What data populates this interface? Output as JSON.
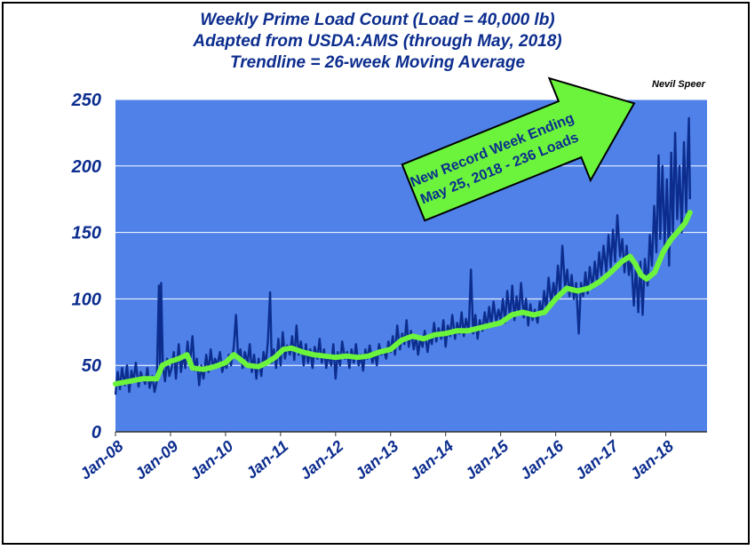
{
  "chart_data": {
    "type": "line",
    "title": [
      "Weekly Prime Load Count (Load = 40,000 lb)",
      "Adapted from USDA:AMS (through May, 2018)",
      "Trendline = 26-week Moving Average"
    ],
    "author": "Nevil Speer",
    "annotation": [
      "New Record Week Ending",
      "May 25, 2018 - 236 Loads"
    ],
    "xlabel": "",
    "ylabel": "",
    "x_tick_labels": [
      "Jan-08",
      "Jan-09",
      "Jan-10",
      "Jan-11",
      "Jan-12",
      "Jan-13",
      "Jan-14",
      "Jan-15",
      "Jan-16",
      "Jan-17",
      "Jan-18"
    ],
    "y_tick_labels": [
      "0",
      "50",
      "100",
      "150",
      "200",
      "250"
    ],
    "xlim": [
      2008.0,
      2018.75
    ],
    "ylim": [
      0,
      250
    ],
    "grid": true,
    "colors": {
      "background": "#4f81e8",
      "weekly": "#0c2d8e",
      "trend": "#6cf43c",
      "text": "#0c2d8e",
      "arrow_fill": "#6cf43c"
    },
    "series": [],
    "weekly_points": [
      [
        2008.0,
        28
      ],
      [
        2008.04,
        45
      ],
      [
        2008.08,
        32
      ],
      [
        2008.12,
        48
      ],
      [
        2008.17,
        35
      ],
      [
        2008.21,
        50
      ],
      [
        2008.25,
        30
      ],
      [
        2008.29,
        46
      ],
      [
        2008.33,
        38
      ],
      [
        2008.37,
        52
      ],
      [
        2008.42,
        34
      ],
      [
        2008.46,
        45
      ],
      [
        2008.5,
        40
      ],
      [
        2008.54,
        36
      ],
      [
        2008.58,
        48
      ],
      [
        2008.62,
        33
      ],
      [
        2008.67,
        42
      ],
      [
        2008.71,
        30
      ],
      [
        2008.75,
        38
      ],
      [
        2008.79,
        110
      ],
      [
        2008.81,
        45
      ],
      [
        2008.83,
        112
      ],
      [
        2008.86,
        50
      ],
      [
        2008.9,
        38
      ],
      [
        2008.94,
        55
      ],
      [
        2008.98,
        42
      ],
      [
        2009.02,
        48
      ],
      [
        2009.06,
        60
      ],
      [
        2009.1,
        40
      ],
      [
        2009.15,
        66
      ],
      [
        2009.19,
        45
      ],
      [
        2009.23,
        58
      ],
      [
        2009.27,
        48
      ],
      [
        2009.31,
        68
      ],
      [
        2009.35,
        50
      ],
      [
        2009.4,
        72
      ],
      [
        2009.44,
        46
      ],
      [
        2009.48,
        55
      ],
      [
        2009.52,
        35
      ],
      [
        2009.56,
        50
      ],
      [
        2009.6,
        40
      ],
      [
        2009.65,
        58
      ],
      [
        2009.69,
        45
      ],
      [
        2009.73,
        62
      ],
      [
        2009.77,
        48
      ],
      [
        2009.81,
        55
      ],
      [
        2009.85,
        50
      ],
      [
        2009.9,
        60
      ],
      [
        2009.94,
        45
      ],
      [
        2009.98,
        52
      ],
      [
        2010.02,
        48
      ],
      [
        2010.06,
        58
      ],
      [
        2010.1,
        50
      ],
      [
        2010.15,
        64
      ],
      [
        2010.19,
        88
      ],
      [
        2010.23,
        55
      ],
      [
        2010.27,
        62
      ],
      [
        2010.31,
        48
      ],
      [
        2010.35,
        60
      ],
      [
        2010.4,
        52
      ],
      [
        2010.44,
        66
      ],
      [
        2010.48,
        45
      ],
      [
        2010.52,
        58
      ],
      [
        2010.56,
        40
      ],
      [
        2010.6,
        55
      ],
      [
        2010.65,
        42
      ],
      [
        2010.69,
        60
      ],
      [
        2010.73,
        50
      ],
      [
        2010.77,
        68
      ],
      [
        2010.81,
        105
      ],
      [
        2010.84,
        52
      ],
      [
        2010.88,
        62
      ],
      [
        2010.92,
        48
      ],
      [
        2010.96,
        70
      ],
      [
        2011.0,
        50
      ],
      [
        2011.04,
        75
      ],
      [
        2011.08,
        55
      ],
      [
        2011.12,
        65
      ],
      [
        2011.17,
        58
      ],
      [
        2011.21,
        72
      ],
      [
        2011.25,
        54
      ],
      [
        2011.29,
        80
      ],
      [
        2011.33,
        58
      ],
      [
        2011.37,
        68
      ],
      [
        2011.42,
        50
      ],
      [
        2011.46,
        66
      ],
      [
        2011.5,
        52
      ],
      [
        2011.54,
        62
      ],
      [
        2011.58,
        48
      ],
      [
        2011.62,
        64
      ],
      [
        2011.67,
        55
      ],
      [
        2011.71,
        70
      ],
      [
        2011.75,
        52
      ],
      [
        2011.79,
        62
      ],
      [
        2011.83,
        48
      ],
      [
        2011.87,
        58
      ],
      [
        2011.92,
        50
      ],
      [
        2011.96,
        66
      ],
      [
        2012.0,
        40
      ],
      [
        2012.04,
        60
      ],
      [
        2012.08,
        50
      ],
      [
        2012.12,
        68
      ],
      [
        2012.17,
        55
      ],
      [
        2012.21,
        60
      ],
      [
        2012.25,
        48
      ],
      [
        2012.29,
        62
      ],
      [
        2012.33,
        52
      ],
      [
        2012.37,
        66
      ],
      [
        2012.42,
        50
      ],
      [
        2012.46,
        58
      ],
      [
        2012.5,
        46
      ],
      [
        2012.54,
        62
      ],
      [
        2012.58,
        55
      ],
      [
        2012.62,
        65
      ],
      [
        2012.67,
        52
      ],
      [
        2012.71,
        60
      ],
      [
        2012.75,
        50
      ],
      [
        2012.79,
        66
      ],
      [
        2012.83,
        58
      ],
      [
        2012.87,
        62
      ],
      [
        2012.92,
        55
      ],
      [
        2012.96,
        68
      ],
      [
        2013.0,
        60
      ],
      [
        2013.04,
        72
      ],
      [
        2013.08,
        58
      ],
      [
        2013.12,
        80
      ],
      [
        2013.17,
        62
      ],
      [
        2013.21,
        74
      ],
      [
        2013.25,
        66
      ],
      [
        2013.29,
        84
      ],
      [
        2013.33,
        64
      ],
      [
        2013.37,
        76
      ],
      [
        2013.42,
        62
      ],
      [
        2013.46,
        72
      ],
      [
        2013.5,
        58
      ],
      [
        2013.54,
        70
      ],
      [
        2013.58,
        64
      ],
      [
        2013.62,
        76
      ],
      [
        2013.67,
        60
      ],
      [
        2013.71,
        72
      ],
      [
        2013.75,
        66
      ],
      [
        2013.79,
        82
      ],
      [
        2013.83,
        68
      ],
      [
        2013.87,
        78
      ],
      [
        2013.92,
        70
      ],
      [
        2013.96,
        84
      ],
      [
        2014.0,
        64
      ],
      [
        2014.04,
        80
      ],
      [
        2014.08,
        72
      ],
      [
        2014.12,
        88
      ],
      [
        2014.17,
        70
      ],
      [
        2014.21,
        82
      ],
      [
        2014.25,
        74
      ],
      [
        2014.29,
        90
      ],
      [
        2014.33,
        72
      ],
      [
        2014.37,
        85
      ],
      [
        2014.42,
        76
      ],
      [
        2014.46,
        122
      ],
      [
        2014.5,
        74
      ],
      [
        2014.54,
        88
      ],
      [
        2014.58,
        70
      ],
      [
        2014.62,
        84
      ],
      [
        2014.67,
        76
      ],
      [
        2014.71,
        90
      ],
      [
        2014.75,
        78
      ],
      [
        2014.79,
        94
      ],
      [
        2014.83,
        80
      ],
      [
        2014.87,
        98
      ],
      [
        2014.92,
        82
      ],
      [
        2014.96,
        92
      ],
      [
        2015.0,
        84
      ],
      [
        2015.04,
        100
      ],
      [
        2015.08,
        82
      ],
      [
        2015.12,
        106
      ],
      [
        2015.17,
        86
      ],
      [
        2015.21,
        110
      ],
      [
        2015.25,
        84
      ],
      [
        2015.29,
        102
      ],
      [
        2015.33,
        88
      ],
      [
        2015.37,
        112
      ],
      [
        2015.42,
        86
      ],
      [
        2015.46,
        100
      ],
      [
        2015.5,
        80
      ],
      [
        2015.54,
        96
      ],
      [
        2015.58,
        84
      ],
      [
        2015.62,
        92
      ],
      [
        2015.67,
        82
      ],
      [
        2015.71,
        98
      ],
      [
        2015.75,
        88
      ],
      [
        2015.79,
        106
      ],
      [
        2015.83,
        92
      ],
      [
        2015.87,
        116
      ],
      [
        2015.92,
        96
      ],
      [
        2015.96,
        112
      ],
      [
        2016.0,
        100
      ],
      [
        2016.04,
        125
      ],
      [
        2016.08,
        104
      ],
      [
        2016.12,
        140
      ],
      [
        2016.17,
        108
      ],
      [
        2016.21,
        122
      ],
      [
        2016.25,
        102
      ],
      [
        2016.29,
        118
      ],
      [
        2016.33,
        100
      ],
      [
        2016.37,
        112
      ],
      [
        2016.42,
        74
      ],
      [
        2016.46,
        112
      ],
      [
        2016.5,
        102
      ],
      [
        2016.54,
        120
      ],
      [
        2016.58,
        104
      ],
      [
        2016.62,
        124
      ],
      [
        2016.67,
        108
      ],
      [
        2016.71,
        128
      ],
      [
        2016.75,
        112
      ],
      [
        2016.79,
        135
      ],
      [
        2016.83,
        118
      ],
      [
        2016.87,
        140
      ],
      [
        2016.92,
        120
      ],
      [
        2016.96,
        148
      ],
      [
        2017.0,
        124
      ],
      [
        2017.04,
        152
      ],
      [
        2017.08,
        128
      ],
      [
        2017.12,
        163
      ],
      [
        2017.17,
        132
      ],
      [
        2017.21,
        145
      ],
      [
        2017.25,
        120
      ],
      [
        2017.29,
        140
      ],
      [
        2017.33,
        118
      ],
      [
        2017.37,
        132
      ],
      [
        2017.42,
        95
      ],
      [
        2017.46,
        125
      ],
      [
        2017.5,
        90
      ],
      [
        2017.54,
        128
      ],
      [
        2017.58,
        88
      ],
      [
        2017.62,
        130
      ],
      [
        2017.67,
        110
      ],
      [
        2017.71,
        148
      ],
      [
        2017.75,
        125
      ],
      [
        2017.79,
        170
      ],
      [
        2017.83,
        135
      ],
      [
        2017.87,
        208
      ],
      [
        2017.9,
        145
      ],
      [
        2017.94,
        200
      ],
      [
        2017.98,
        140
      ],
      [
        2018.02,
        190
      ],
      [
        2018.06,
        125
      ],
      [
        2018.1,
        210
      ],
      [
        2018.13,
        150
      ],
      [
        2018.17,
        225
      ],
      [
        2018.21,
        160
      ],
      [
        2018.25,
        200
      ],
      [
        2018.29,
        150
      ],
      [
        2018.33,
        218
      ],
      [
        2018.37,
        165
      ],
      [
        2018.4,
        210
      ],
      [
        2018.42,
        236
      ],
      [
        2018.44,
        175
      ]
    ],
    "trend_points": [
      [
        2008.0,
        36
      ],
      [
        2008.25,
        38
      ],
      [
        2008.5,
        40
      ],
      [
        2008.75,
        40
      ],
      [
        2008.85,
        50
      ],
      [
        2009.0,
        53
      ],
      [
        2009.15,
        55
      ],
      [
        2009.3,
        58
      ],
      [
        2009.4,
        48
      ],
      [
        2009.6,
        47
      ],
      [
        2009.8,
        49
      ],
      [
        2010.0,
        52
      ],
      [
        2010.15,
        58
      ],
      [
        2010.25,
        55
      ],
      [
        2010.4,
        50
      ],
      [
        2010.6,
        49
      ],
      [
        2010.75,
        52
      ],
      [
        2010.9,
        56
      ],
      [
        2011.05,
        62
      ],
      [
        2011.2,
        63
      ],
      [
        2011.4,
        60
      ],
      [
        2011.6,
        58
      ],
      [
        2011.8,
        57
      ],
      [
        2012.0,
        56
      ],
      [
        2012.2,
        57
      ],
      [
        2012.4,
        56
      ],
      [
        2012.6,
        57
      ],
      [
        2012.8,
        60
      ],
      [
        2013.0,
        62
      ],
      [
        2013.2,
        69
      ],
      [
        2013.4,
        72
      ],
      [
        2013.6,
        70
      ],
      [
        2013.8,
        73
      ],
      [
        2014.0,
        74
      ],
      [
        2014.2,
        76
      ],
      [
        2014.4,
        76
      ],
      [
        2014.6,
        78
      ],
      [
        2014.8,
        80
      ],
      [
        2015.0,
        82
      ],
      [
        2015.2,
        88
      ],
      [
        2015.4,
        90
      ],
      [
        2015.6,
        88
      ],
      [
        2015.8,
        90
      ],
      [
        2016.0,
        100
      ],
      [
        2016.2,
        108
      ],
      [
        2016.4,
        106
      ],
      [
        2016.6,
        108
      ],
      [
        2016.8,
        113
      ],
      [
        2017.0,
        120
      ],
      [
        2017.2,
        128
      ],
      [
        2017.35,
        132
      ],
      [
        2017.45,
        126
      ],
      [
        2017.55,
        118
      ],
      [
        2017.65,
        115
      ],
      [
        2017.8,
        120
      ],
      [
        2017.95,
        135
      ],
      [
        2018.1,
        145
      ],
      [
        2018.25,
        152
      ],
      [
        2018.35,
        157
      ],
      [
        2018.44,
        165
      ]
    ]
  }
}
